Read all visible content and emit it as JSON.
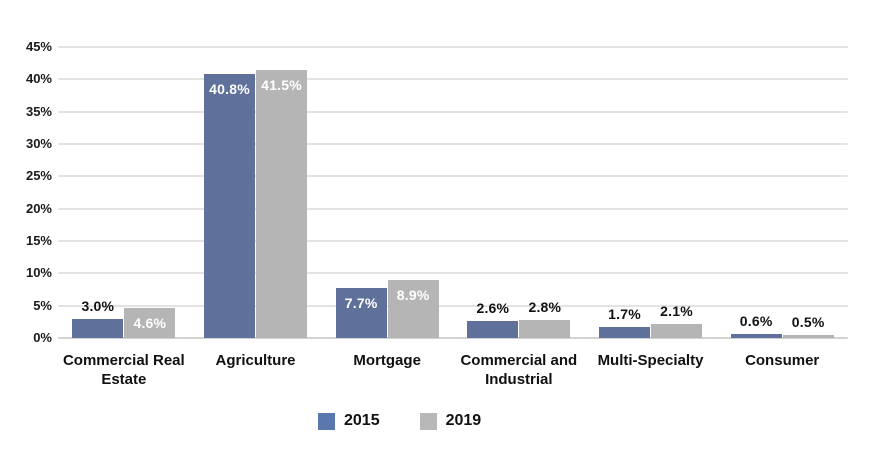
{
  "chart_data": {
    "type": "bar",
    "title": "",
    "categories": [
      "Commercial Real Estate",
      "Agriculture",
      "Mortgage",
      "Commercial and Industrial",
      "Multi-Specialty",
      "Consumer"
    ],
    "series": [
      {
        "name": "2015",
        "color": "#5F719B",
        "values": [
          3.0,
          40.8,
          7.7,
          2.6,
          1.7,
          0.6
        ]
      },
      {
        "name": "2019",
        "color": "#B5B5B5",
        "values": [
          4.6,
          41.5,
          8.9,
          2.8,
          2.1,
          0.5
        ]
      }
    ],
    "value_labels": [
      [
        "3.0%",
        "40.8%",
        "7.7%",
        "2.6%",
        "1.7%",
        "0.6%"
      ],
      [
        "4.6%",
        "41.5%",
        "8.9%",
        "2.8%",
        "2.1%",
        "0.5%"
      ]
    ],
    "y_ticks": [
      "45%",
      "40%",
      "35%",
      "30%",
      "25%",
      "20%",
      "15%",
      "10%",
      "5%",
      "0%"
    ],
    "y_tick_values": [
      45,
      40,
      35,
      30,
      25,
      20,
      15,
      10,
      5,
      0
    ],
    "ylim": [
      0,
      45
    ],
    "xlabel": "",
    "ylabel": "",
    "grid": true,
    "legend_position": "bottom"
  },
  "legend": {
    "items": [
      {
        "label": "2015",
        "color": "#5A78AD"
      },
      {
        "label": "2019",
        "color": "#B8B8B8"
      }
    ]
  },
  "colors": {
    "background": "#FFFFFF",
    "gridline": "#E3E3E3",
    "baseline": "#D2D2D2",
    "tick_text": "#1A1A1A",
    "category_text": "#111111",
    "outside_value_text": "#111111",
    "inside_value_text": "#FFFFFF"
  }
}
